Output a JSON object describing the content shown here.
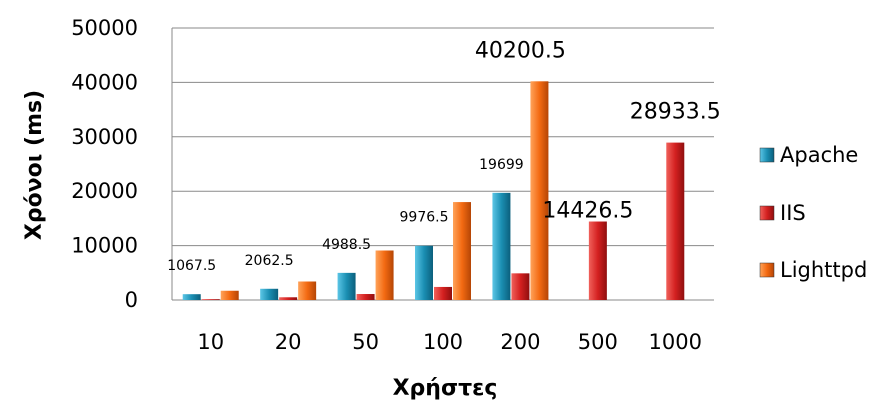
{
  "chart_data": {
    "type": "bar",
    "title": "",
    "xlabel": "Χρήστες",
    "ylabel": "Χρόνοι (ms)",
    "ylim": [
      0,
      50000
    ],
    "yticks": [
      "0",
      "10000",
      "20000",
      "30000",
      "40000",
      "50000"
    ],
    "categories": [
      "10",
      "20",
      "50",
      "100",
      "200",
      "500",
      "1000"
    ],
    "grid": true,
    "legend_position": "right",
    "series": [
      {
        "name": "Apache",
        "color": "#1b8fb3",
        "values": [
          1067.5,
          2062.5,
          4988.5,
          9976.5,
          19699,
          null,
          null
        ]
      },
      {
        "name": "IIS",
        "color": "#d42020",
        "values": [
          150,
          500,
          1100,
          2400,
          4900,
          14426.5,
          28933.5
        ]
      },
      {
        "name": "Lighttpd",
        "color": "#f36a12",
        "values": [
          1700,
          3400,
          9100,
          18000,
          40200.5,
          null,
          null
        ]
      }
    ],
    "data_labels": [
      {
        "text": "1067.5",
        "category": "10",
        "value": 1067.5,
        "size": "small"
      },
      {
        "text": "2062.5",
        "category": "20",
        "value": 2062.5,
        "size": "small"
      },
      {
        "text": "4988.5",
        "category": "50",
        "value": 4988.5,
        "size": "small"
      },
      {
        "text": "9976.5",
        "category": "100",
        "value": 9976.5,
        "size": "small"
      },
      {
        "text": "19699",
        "category": "200",
        "value": 19699,
        "size": "small"
      },
      {
        "text": "40200.5",
        "category": "200",
        "value": 40200.5,
        "size": "large"
      },
      {
        "text": "14426.5",
        "category": "500",
        "value": 14426.5,
        "size": "large"
      },
      {
        "text": "28933.5",
        "category": "1000",
        "value": 28933.5,
        "size": "large"
      }
    ]
  }
}
